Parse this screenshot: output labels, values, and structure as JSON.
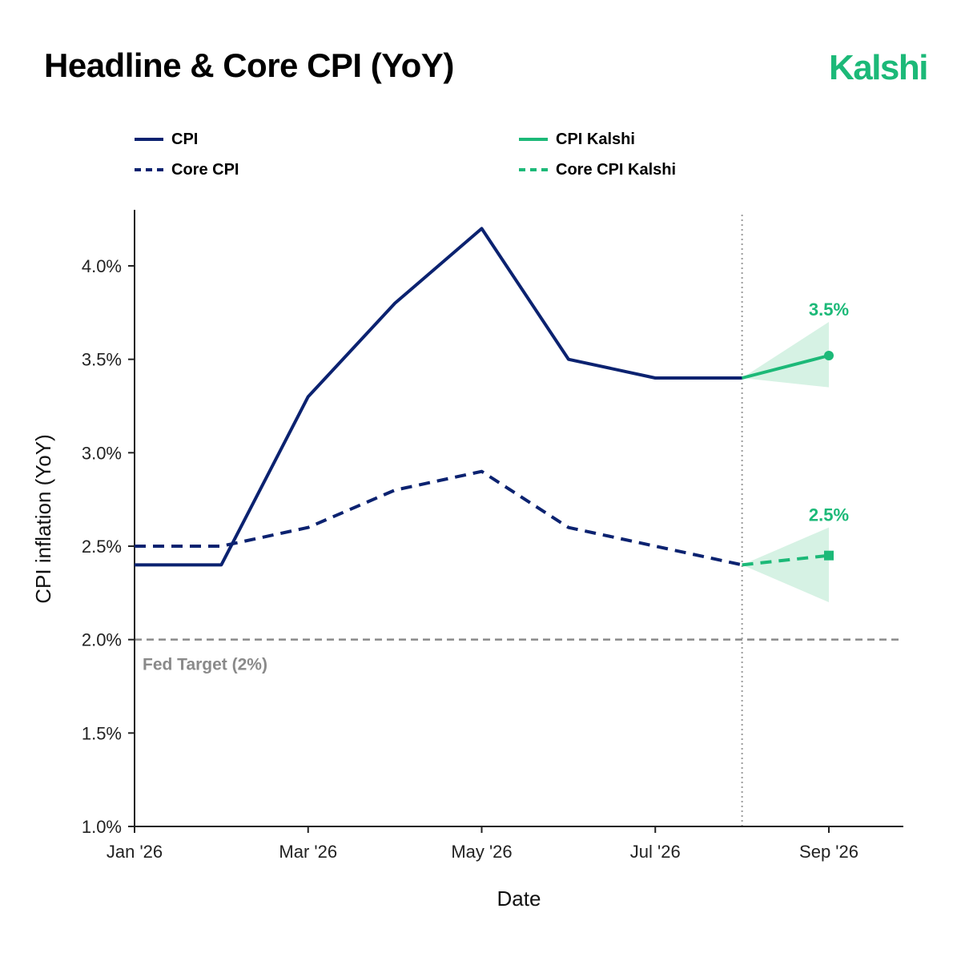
{
  "header": {
    "title": "Headline & Core CPI (YoY)",
    "brand": "Kalshi"
  },
  "legend": {
    "items": [
      {
        "label": "CPI",
        "color": "#0b2270",
        "dashed": false
      },
      {
        "label": "Core CPI",
        "color": "#0b2270",
        "dashed": true
      },
      {
        "label": "CPI Kalshi",
        "color": "#1cb978",
        "dashed": false
      },
      {
        "label": "Core CPI Kalshi",
        "color": "#1cb978",
        "dashed": true
      }
    ]
  },
  "colors": {
    "historical": "#0b2270",
    "forecast": "#1cb978",
    "forecast_band": "#d6f2e4",
    "target_line": "#8a8a8a",
    "axis": "#222222"
  },
  "chart_data": {
    "type": "line",
    "title": "Headline & Core CPI (YoY)",
    "xlabel": "Date",
    "ylabel": "CPI inflation (YoY)",
    "ylim": [
      1.0,
      4.3
    ],
    "y_ticks": [
      1.0,
      1.5,
      2.0,
      2.5,
      3.0,
      3.5,
      4.0
    ],
    "y_tick_labels": [
      "1.0%",
      "1.5%",
      "2.0%",
      "2.5%",
      "3.0%",
      "3.5%",
      "4.0%"
    ],
    "x_ticks": [
      "2026-01",
      "2026-03",
      "2026-05",
      "2026-07",
      "2026-09"
    ],
    "x_tick_labels": [
      "Jan '26",
      "Mar '26",
      "May '26",
      "Jul '26",
      "Sep '26"
    ],
    "x_range": [
      "2026-01",
      "2026-09"
    ],
    "grid": false,
    "legend_position": "top",
    "series": [
      {
        "name": "CPI",
        "style": "solid",
        "x": [
          "2026-01",
          "2026-02",
          "2026-03",
          "2026-04",
          "2026-05",
          "2026-06",
          "2026-07",
          "2026-08"
        ],
        "y": [
          2.4,
          2.4,
          3.3,
          3.8,
          4.2,
          3.5,
          3.4,
          3.4
        ]
      },
      {
        "name": "Core CPI",
        "style": "dashed",
        "x": [
          "2026-01",
          "2026-02",
          "2026-03",
          "2026-04",
          "2026-05",
          "2026-06",
          "2026-07",
          "2026-08"
        ],
        "y": [
          2.5,
          2.5,
          2.6,
          2.8,
          2.9,
          2.6,
          2.5,
          2.4
        ]
      },
      {
        "name": "CPI Kalshi",
        "style": "solid",
        "x": [
          "2026-08",
          "2026-09"
        ],
        "y": [
          3.4,
          3.52
        ],
        "band_upper": [
          3.4,
          3.7
        ],
        "band_lower": [
          3.4,
          3.35
        ],
        "end_label": "3.5%",
        "marker": "circle"
      },
      {
        "name": "Core CPI Kalshi",
        "style": "dashed",
        "x": [
          "2026-08",
          "2026-09"
        ],
        "y": [
          2.4,
          2.45
        ],
        "band_upper": [
          2.4,
          2.6
        ],
        "band_lower": [
          2.4,
          2.2
        ],
        "end_label": "2.5%",
        "marker": "square"
      }
    ],
    "reference_line": {
      "y": 2.0,
      "label": "Fed Target (2%)",
      "style": "dashed"
    },
    "forecast_start": "2026-08"
  }
}
